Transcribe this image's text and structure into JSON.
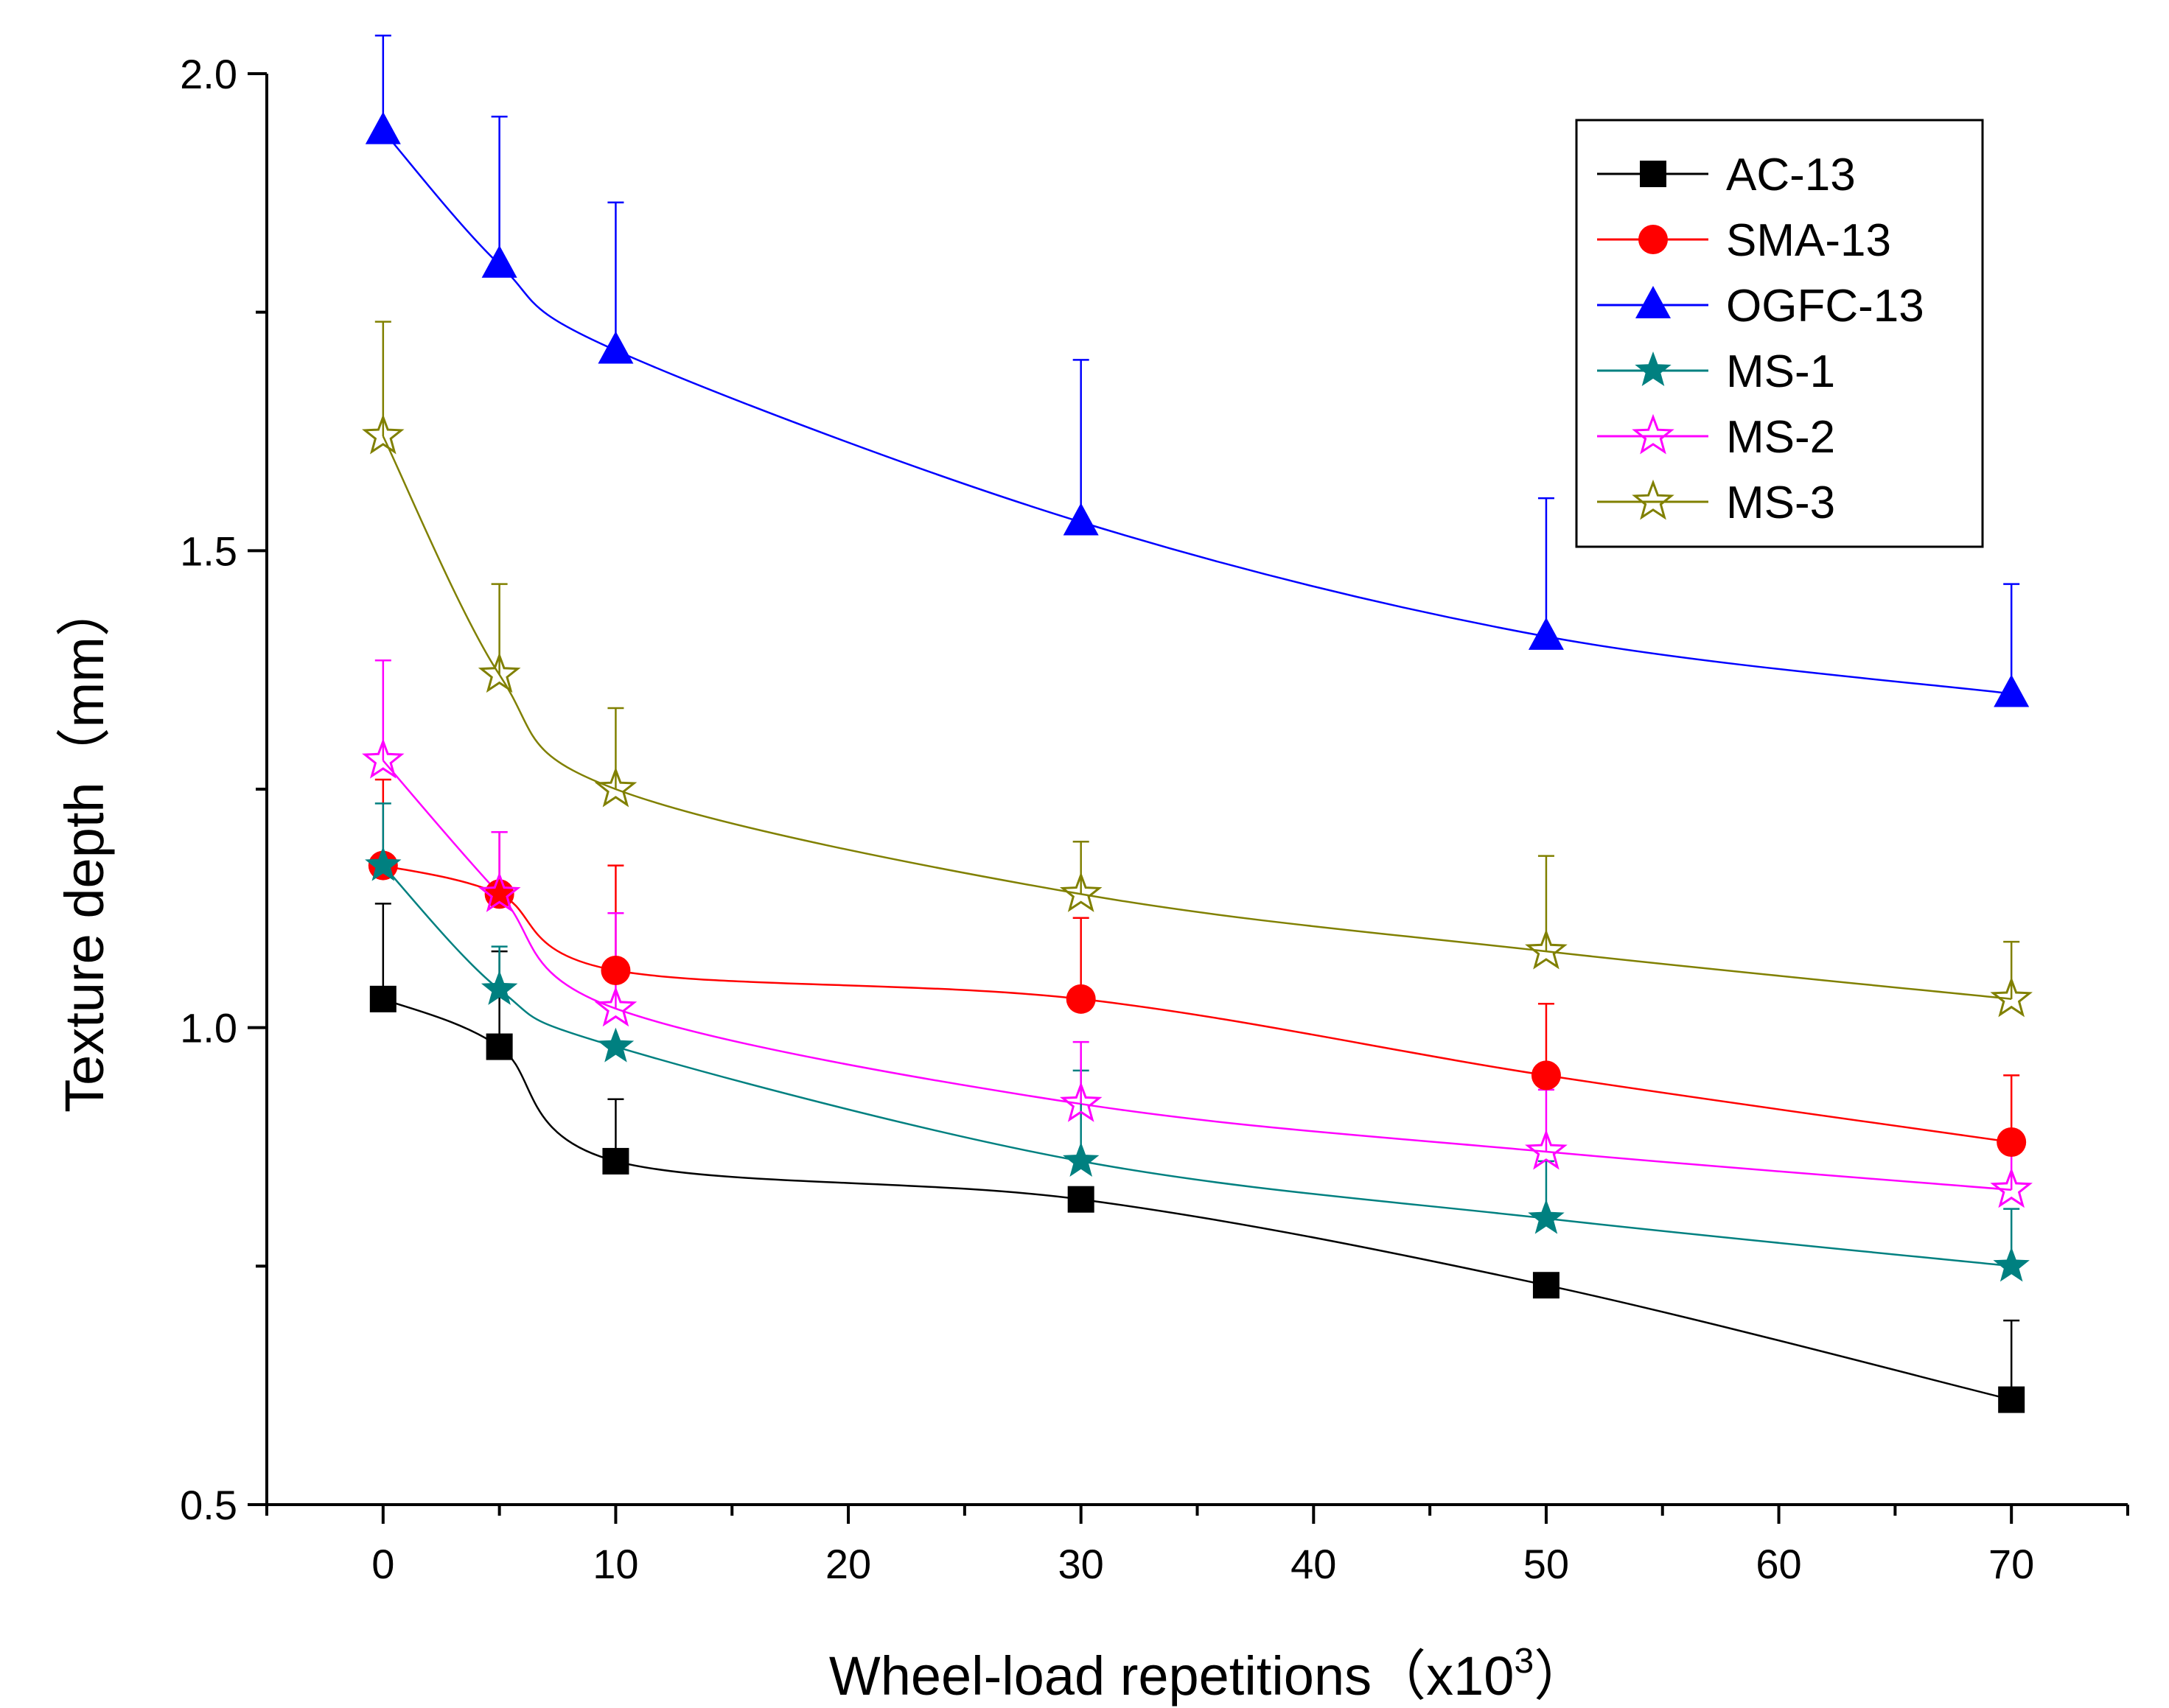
{
  "chart_data": {
    "type": "line",
    "title": "",
    "xlabel": "Wheel-load repetitions（x10",
    "xlabel_sup": "3",
    "xlabel_close": "）",
    "ylabel": "Texture depth（mm）",
    "xlim": [
      -5,
      75
    ],
    "ylim": [
      0.5,
      2.0
    ],
    "xticks": [
      0,
      10,
      20,
      30,
      40,
      50,
      60,
      70
    ],
    "xtick_labels": [
      "0",
      "10",
      "20",
      "30",
      "40",
      "50",
      "60",
      "70"
    ],
    "yticks": [
      0.5,
      1.0,
      1.5,
      2.0
    ],
    "ytick_labels": [
      "0.5",
      "1.0",
      "1.5",
      "2.0"
    ],
    "grid": false,
    "legend_position": "top-right",
    "x": [
      0,
      5,
      10,
      30,
      50,
      70
    ],
    "series": [
      {
        "name": "AC-13",
        "color": "#000000",
        "marker": "square",
        "values": [
          1.03,
          0.98,
          0.86,
          0.82,
          0.73,
          0.61
        ],
        "err": [
          0.1,
          0.1,
          0.065,
          null,
          null,
          0.083
        ]
      },
      {
        "name": "SMA-13",
        "color": "#ff0000",
        "marker": "circle",
        "values": [
          1.17,
          1.14,
          1.06,
          1.03,
          0.95,
          0.88
        ],
        "err": [
          0.09,
          0.065,
          0.11,
          0.085,
          0.075,
          0.07
        ]
      },
      {
        "name": "OGFC-13",
        "color": "#0000ff",
        "marker": "triangle",
        "values": [
          1.94,
          1.8,
          1.71,
          1.53,
          1.41,
          1.35
        ],
        "err": [
          0.1,
          0.155,
          0.155,
          0.17,
          0.145,
          0.115
        ]
      },
      {
        "name": "MS-1",
        "color": "#008080",
        "marker": "star-filled",
        "values": [
          1.17,
          1.04,
          0.98,
          0.86,
          0.8,
          0.75
        ],
        "err": [
          0.065,
          0.045,
          null,
          0.095,
          0.06,
          0.06
        ]
      },
      {
        "name": "MS-2",
        "color": "#ff00ff",
        "marker": "star-open",
        "values": [
          1.28,
          1.14,
          1.02,
          0.92,
          0.87,
          0.83
        ],
        "err": [
          0.105,
          0.065,
          0.1,
          0.065,
          0.065,
          0.05
        ]
      },
      {
        "name": "MS-3",
        "color": "#808000",
        "marker": "star-open",
        "values": [
          1.62,
          1.37,
          1.25,
          1.14,
          1.08,
          1.03
        ],
        "err": [
          0.12,
          0.095,
          0.085,
          0.055,
          0.1,
          0.06
        ]
      }
    ]
  }
}
